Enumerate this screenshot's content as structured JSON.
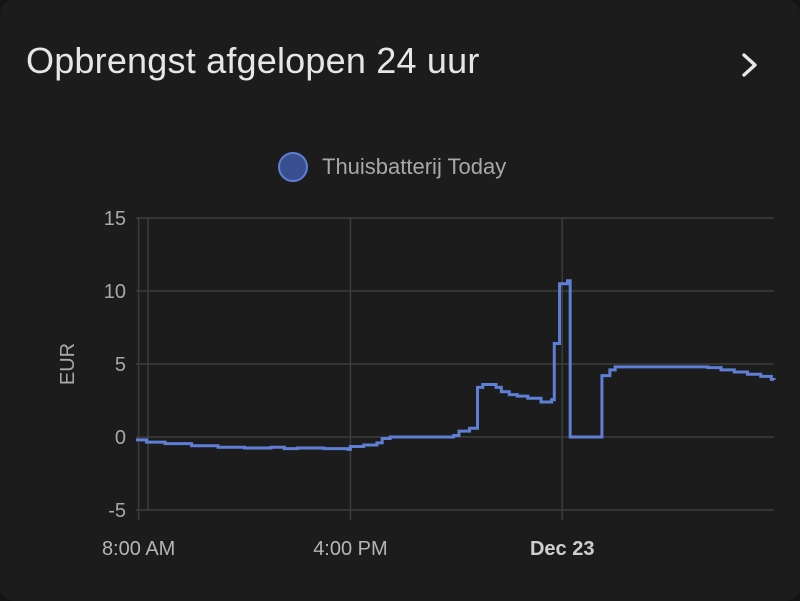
{
  "card": {
    "title": "Opbrengst afgelopen 24 uur",
    "more_icon": "chevron-right-icon"
  },
  "colors": {
    "background": "#1c1c1c",
    "series": "#5f7fd6",
    "swatch_fill": "#3a4f8f",
    "grid": "#3c3c3c",
    "text": "#e6e6e6",
    "muted_text": "#a8a8a8"
  },
  "chart_data": {
    "type": "line",
    "step": true,
    "title": "Opbrengst afgelopen 24 uur",
    "xlabel": "",
    "ylabel": "EUR",
    "ylim": [
      -5,
      15
    ],
    "yticks": [
      15,
      10,
      5,
      0,
      -5
    ],
    "xlim": [
      7.9,
      32.0
    ],
    "xticks": [
      {
        "value": 8,
        "label": "8:00 AM",
        "bold": false
      },
      {
        "value": 16,
        "label": "4:00 PM",
        "bold": false
      },
      {
        "value": 24,
        "label": "Dec 23",
        "bold": true
      }
    ],
    "x_unit": "hour of day (24 = Dec 23 00:00)",
    "grid": true,
    "legend_position": "top-center",
    "series": [
      {
        "name": "Thuisbatterij Today",
        "points": [
          [
            7.9,
            -0.2
          ],
          [
            8.3,
            -0.35
          ],
          [
            9.0,
            -0.45
          ],
          [
            10.0,
            -0.6
          ],
          [
            11.0,
            -0.7
          ],
          [
            12.0,
            -0.75
          ],
          [
            13.0,
            -0.7
          ],
          [
            13.5,
            -0.8
          ],
          [
            14.0,
            -0.75
          ],
          [
            15.0,
            -0.8
          ],
          [
            15.9,
            -0.85
          ],
          [
            16.0,
            -0.65
          ],
          [
            16.5,
            -0.55
          ],
          [
            17.0,
            -0.4
          ],
          [
            17.2,
            -0.1
          ],
          [
            17.5,
            0.0
          ],
          [
            18.5,
            0.0
          ],
          [
            19.5,
            0.0
          ],
          [
            19.9,
            0.1
          ],
          [
            20.1,
            0.4
          ],
          [
            20.5,
            0.6
          ],
          [
            20.8,
            3.4
          ],
          [
            21.0,
            3.6
          ],
          [
            21.5,
            3.4
          ],
          [
            21.7,
            3.1
          ],
          [
            22.0,
            2.9
          ],
          [
            22.3,
            2.8
          ],
          [
            22.7,
            2.65
          ],
          [
            23.2,
            2.4
          ],
          [
            23.6,
            2.55
          ],
          [
            23.7,
            6.4
          ],
          [
            23.9,
            10.5
          ],
          [
            24.2,
            10.7
          ],
          [
            24.3,
            0.0
          ],
          [
            25.3,
            0.0
          ],
          [
            25.5,
            4.2
          ],
          [
            25.8,
            4.6
          ],
          [
            26.0,
            4.8
          ],
          [
            27.0,
            4.8
          ],
          [
            28.5,
            4.8
          ],
          [
            29.5,
            4.75
          ],
          [
            30.0,
            4.6
          ],
          [
            30.5,
            4.45
          ],
          [
            31.0,
            4.3
          ],
          [
            31.5,
            4.15
          ],
          [
            31.9,
            3.95
          ],
          [
            32.0,
            3.9
          ]
        ]
      }
    ]
  }
}
